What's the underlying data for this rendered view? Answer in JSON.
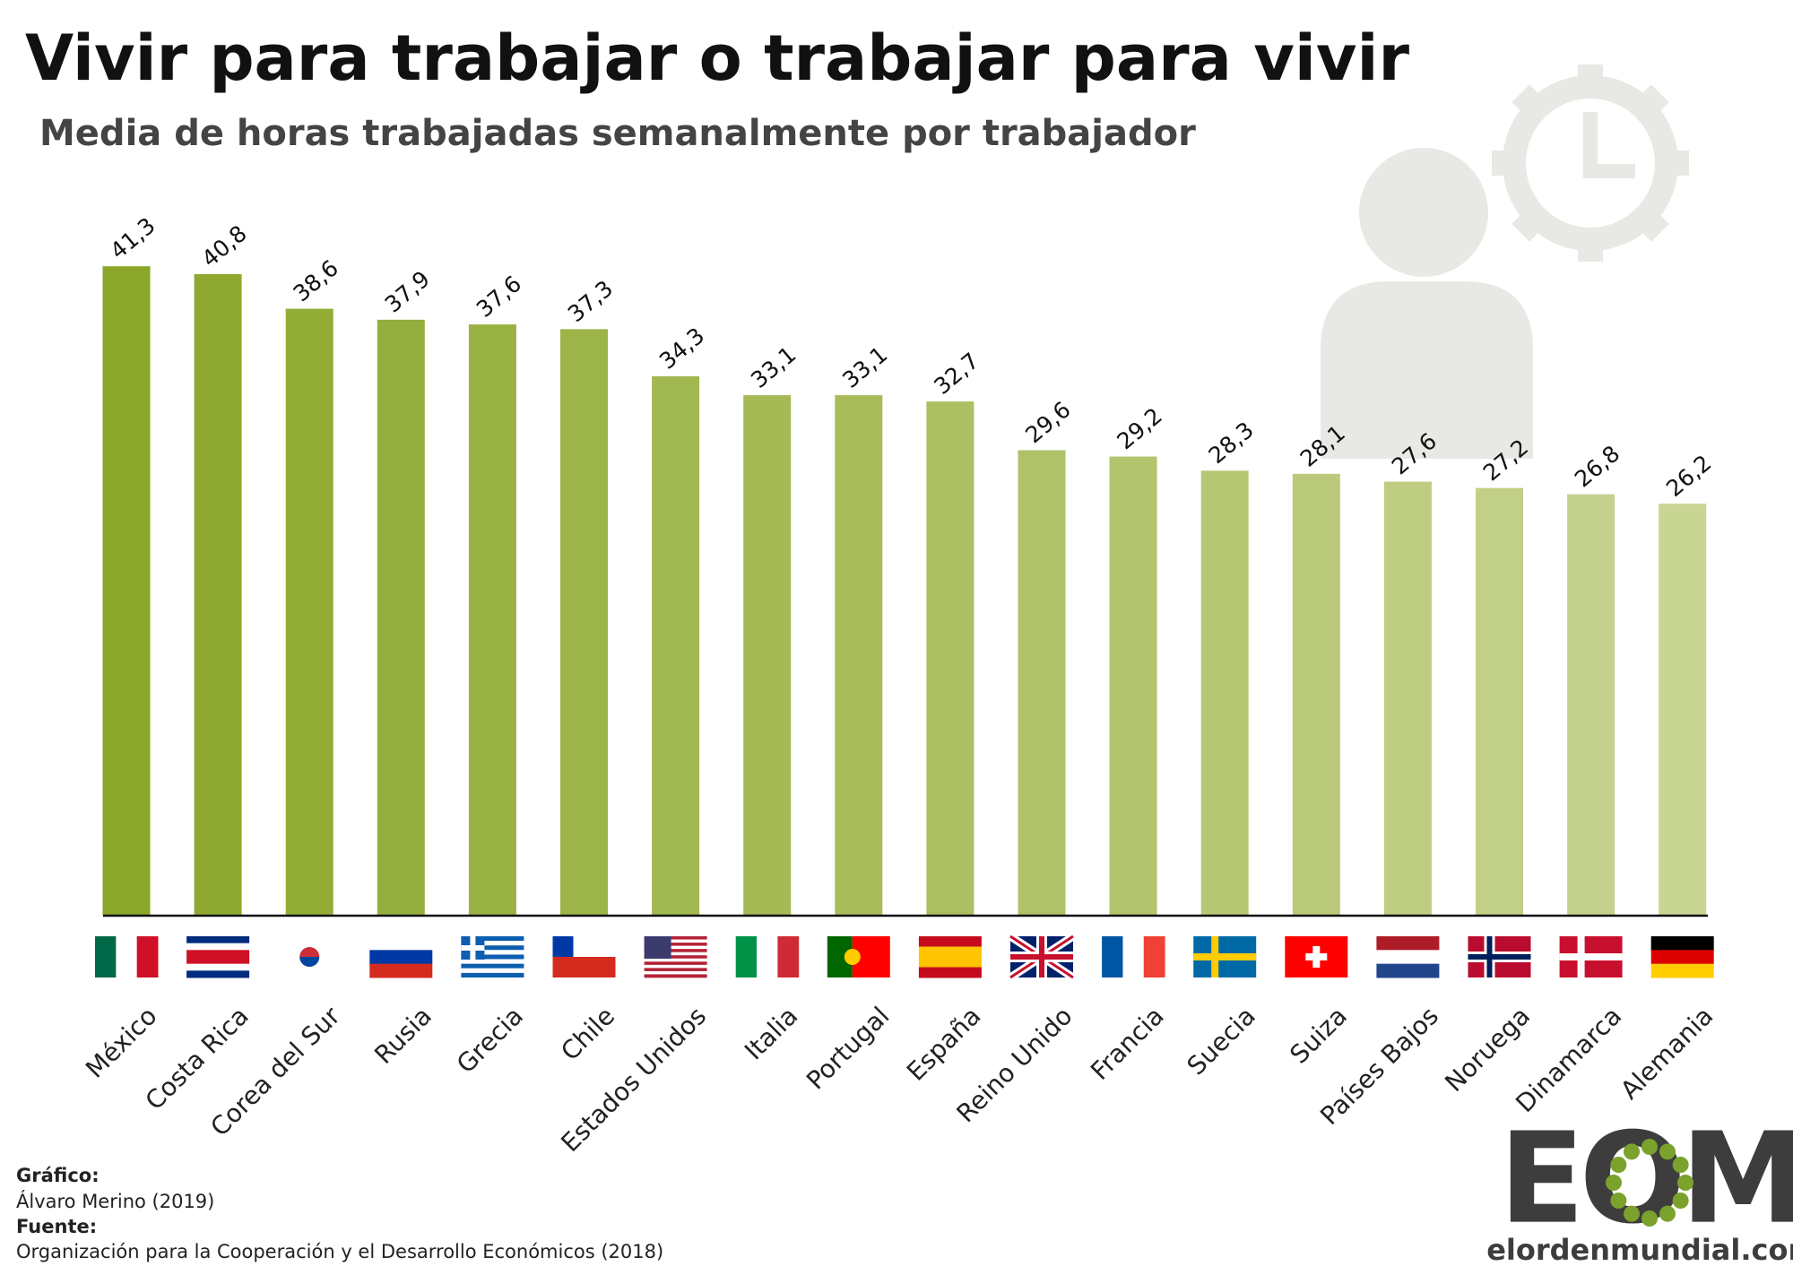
{
  "chart_data": {
    "type": "bar",
    "title": "Vivir para trabajar o trabajar para vivir",
    "subtitle": "Media de horas trabajadas semanalmente por trabajador",
    "categories": [
      "México",
      "Costa Rica",
      "Corea del Sur",
      "Rusia",
      "Grecia",
      "Chile",
      "Estados Unidos",
      "Italia",
      "Portugal",
      "España",
      "Reino Unido",
      "Francia",
      "Suecia",
      "Suiza",
      "Países Bajos",
      "Noruega",
      "Dinamarca",
      "Alemania"
    ],
    "values": [
      41.3,
      40.8,
      38.6,
      37.9,
      37.6,
      37.3,
      34.3,
      33.1,
      33.1,
      32.7,
      29.6,
      29.2,
      28.3,
      28.1,
      27.6,
      27.2,
      26.8,
      26.2
    ],
    "value_labels": [
      "41,3",
      "40,8",
      "38,6",
      "37,9",
      "37,6",
      "37,3",
      "34,3",
      "33,1",
      "33,1",
      "32,7",
      "29,6",
      "29,2",
      "28,3",
      "28,1",
      "27,6",
      "27,2",
      "26,8",
      "26,2"
    ],
    "colors": [
      "#8ba62a",
      "#8fa930",
      "#92ac36",
      "#96ae3d",
      "#9ab143",
      "#9db449",
      "#a1b74f",
      "#a5b955",
      "#a8bc5b",
      "#acbf62",
      "#afc268",
      "#b3c46e",
      "#b7c774",
      "#baca7a",
      "#becd81",
      "#c2cf87",
      "#c5d28d",
      "#c9d593"
    ],
    "credits": {
      "graphic_label": "Gráfico:",
      "graphic": "Álvaro Merino (2019)",
      "source_label": "Fuente:",
      "source": "Organización para la Cooperación y el Desarrollo Económicos (2018)"
    },
    "logo": {
      "mark": "EOM",
      "site": "elordenmundial.com"
    }
  }
}
